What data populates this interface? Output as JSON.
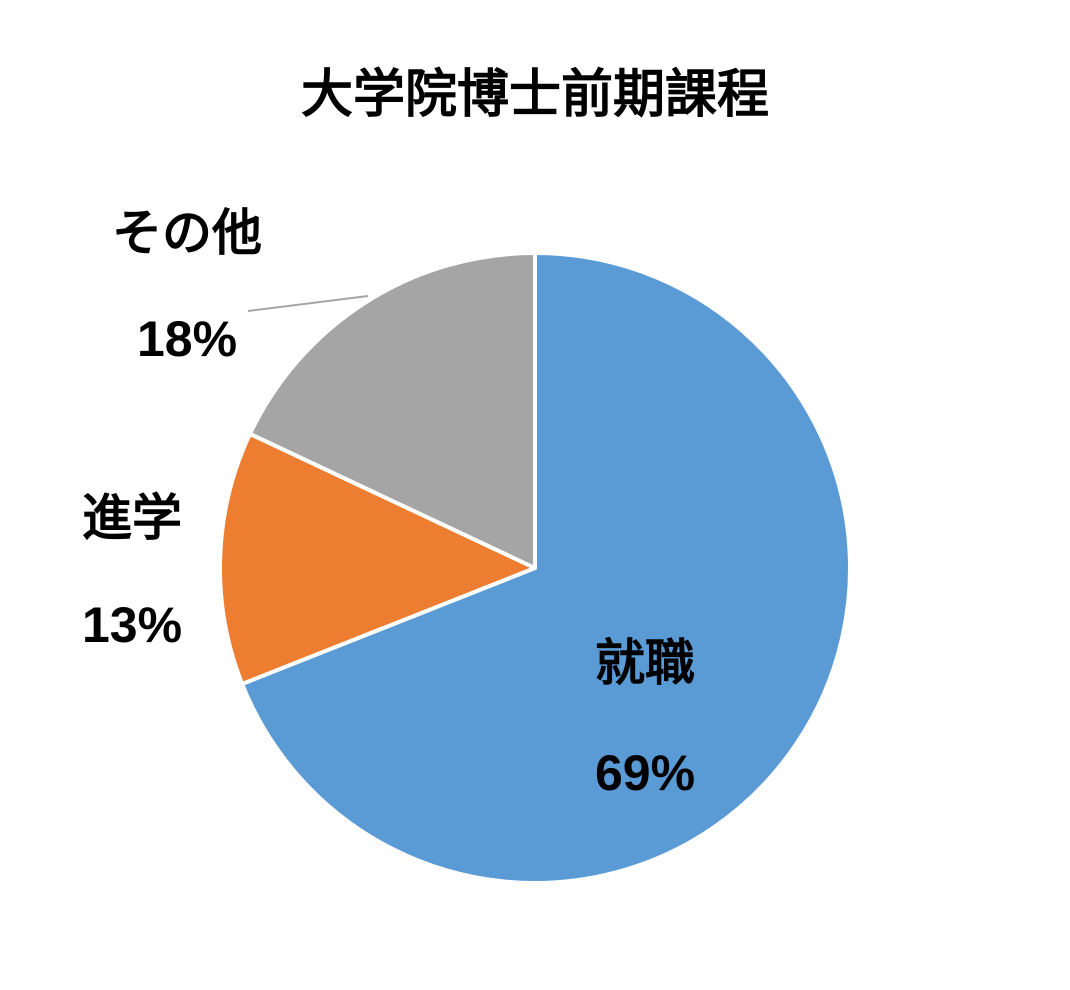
{
  "chart_data": {
    "type": "pie",
    "title": "大学院博士前期課程",
    "start_angle": "12 o'clock, clockwise",
    "slices": [
      {
        "label": "就職",
        "value": 69,
        "value_label": "69%",
        "color": "#5B9BD5"
      },
      {
        "label": "進学",
        "value": 13,
        "value_label": "13%",
        "color": "#ED7D31"
      },
      {
        "label": "その他",
        "value": 18,
        "value_label": "18%",
        "color": "#A5A5A5"
      }
    ],
    "legend": "none",
    "data_labels": "category and percent"
  }
}
